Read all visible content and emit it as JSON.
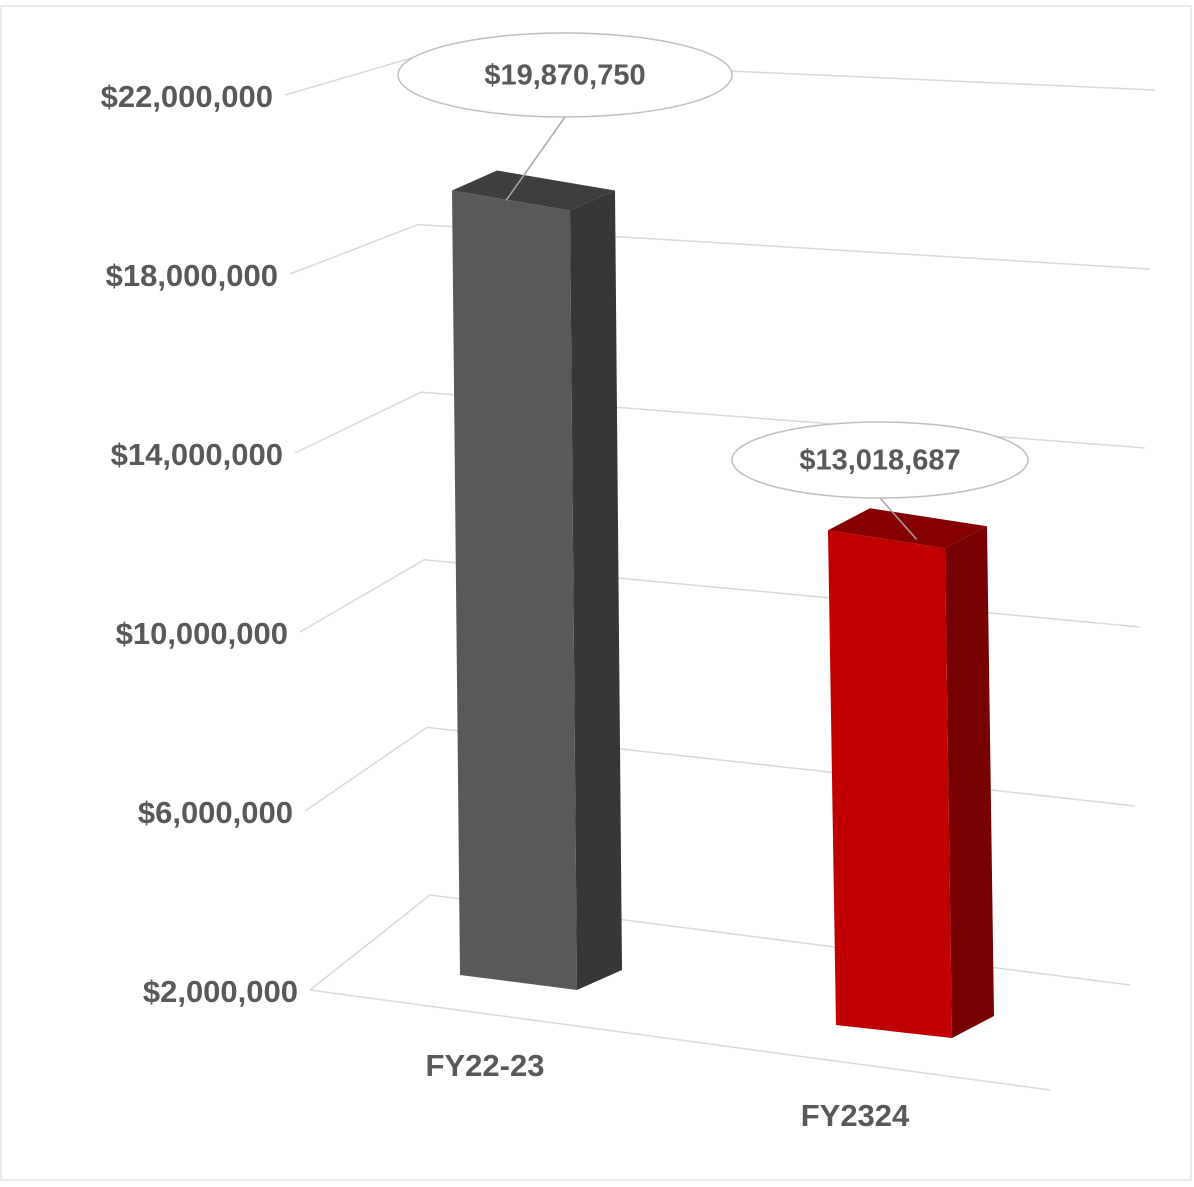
{
  "chart_data": {
    "type": "bar3d",
    "categories": [
      "FY22-23",
      "FY2324"
    ],
    "values": [
      19870750,
      13018687
    ],
    "value_labels": [
      "$19,870,750",
      "$13,018,687"
    ],
    "colors": [
      "#595959",
      "#c00000"
    ],
    "ylim": [
      2000000,
      22000000
    ],
    "yticks": [
      {
        "value": 2000000,
        "label": "$2,000,000"
      },
      {
        "value": 6000000,
        "label": "$6,000,000"
      },
      {
        "value": 10000000,
        "label": "$10,000,000"
      },
      {
        "value": 14000000,
        "label": "$14,000,000"
      },
      {
        "value": 18000000,
        "label": "$18,000,000"
      },
      {
        "value": 22000000,
        "label": "$22,000,000"
      }
    ],
    "grid": true
  }
}
